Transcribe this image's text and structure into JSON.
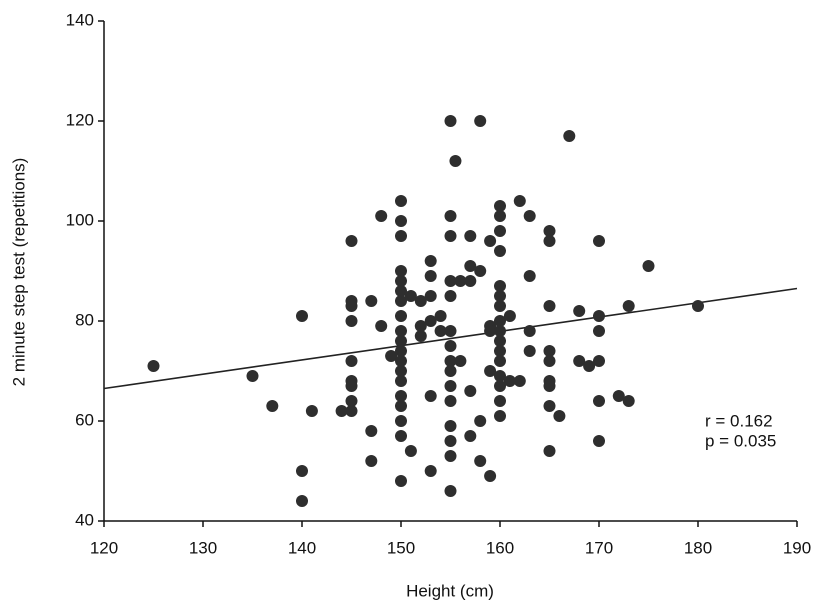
{
  "chart_data": {
    "type": "scatter",
    "x_label": "Height (cm)",
    "y_label": "2 minute step test (repetitions)",
    "annotations": [
      "r = 0.162",
      "p = 0.035"
    ],
    "color": "#2e2e2e",
    "grid": false,
    "xlim": [
      120,
      190
    ],
    "ylim": [
      40,
      140
    ],
    "xticks": [
      120,
      130,
      140,
      150,
      160,
      170,
      180,
      190
    ],
    "yticks": [
      40,
      60,
      80,
      100,
      120,
      140
    ],
    "trend_line": {
      "x": [
        120,
        190
      ],
      "y": [
        66.5,
        86.5
      ]
    },
    "x": [
      125,
      135,
      137,
      141,
      140,
      140,
      140,
      144,
      145,
      145,
      145,
      145,
      145,
      145,
      145,
      145,
      145,
      147,
      147,
      147,
      148,
      148,
      149,
      150,
      150,
      150,
      150,
      150,
      150,
      150,
      150,
      150,
      150,
      150,
      150,
      150,
      150,
      150,
      150,
      150,
      150,
      150,
      151,
      151,
      152,
      152,
      152,
      153,
      153,
      153,
      153,
      153,
      153,
      154,
      154,
      155,
      155,
      155,
      155,
      155,
      155,
      155,
      155,
      155,
      155,
      155,
      155,
      155,
      155,
      155,
      155.5,
      156,
      156,
      157,
      157,
      157,
      157,
      157,
      158,
      158,
      158,
      158,
      159,
      159,
      159,
      159,
      159,
      160,
      160,
      160,
      160,
      160,
      160,
      160,
      160,
      160,
      160,
      160,
      160,
      160,
      160,
      160,
      160,
      161,
      161,
      162,
      162,
      163,
      163,
      163,
      163,
      165,
      165,
      165,
      165,
      165,
      165,
      165,
      165,
      165,
      166,
      167,
      168,
      168,
      169,
      170,
      170,
      170,
      170,
      170,
      170,
      172,
      173,
      173,
      175,
      180
    ],
    "values": [
      71,
      69,
      63,
      62,
      81,
      50,
      44,
      62,
      96,
      84,
      83,
      80,
      72,
      68,
      67,
      64,
      62,
      84,
      58,
      52,
      101,
      79,
      73,
      104,
      100,
      97,
      90,
      88,
      86,
      84,
      81,
      78,
      76,
      74,
      72,
      70,
      68,
      65,
      63,
      60,
      57,
      48,
      85,
      54,
      84,
      79,
      77,
      92,
      89,
      85,
      80,
      65,
      50,
      81,
      78,
      120,
      101,
      97,
      88,
      85,
      78,
      75,
      72,
      70,
      67,
      64,
      59,
      56,
      53,
      46,
      112,
      88,
      72,
      97,
      91,
      88,
      66,
      57,
      120,
      90,
      60,
      52,
      96,
      79,
      78,
      70,
      49,
      103,
      101,
      98,
      94,
      87,
      85,
      83,
      80,
      78,
      76,
      74,
      72,
      69,
      67,
      64,
      61,
      81,
      68,
      104,
      68,
      101,
      89,
      78,
      74,
      98,
      96,
      83,
      74,
      72,
      68,
      67,
      63,
      54,
      61,
      117,
      82,
      72,
      71,
      96,
      81,
      78,
      72,
      64,
      56,
      65,
      83,
      64,
      91,
      83
    ]
  }
}
